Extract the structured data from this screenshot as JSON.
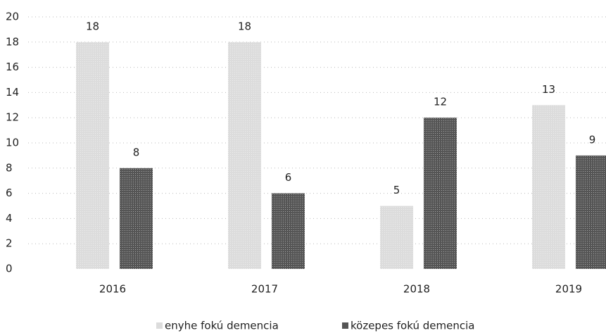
{
  "chart_data": {
    "type": "bar",
    "categories": [
      "2016",
      "2017",
      "2018",
      "2019"
    ],
    "series": [
      {
        "name": "enyhe fokú demencia",
        "color": "#dcdcdc",
        "values": [
          18,
          18,
          5,
          13
        ]
      },
      {
        "name": "közepes fokú demencia",
        "color": "#555555",
        "values": [
          8,
          6,
          12,
          9
        ]
      }
    ],
    "ylim": [
      0,
      20
    ],
    "yticks": [
      0,
      2,
      4,
      6,
      8,
      10,
      12,
      14,
      16,
      18,
      20
    ],
    "grid": true,
    "legend": "bottom"
  }
}
